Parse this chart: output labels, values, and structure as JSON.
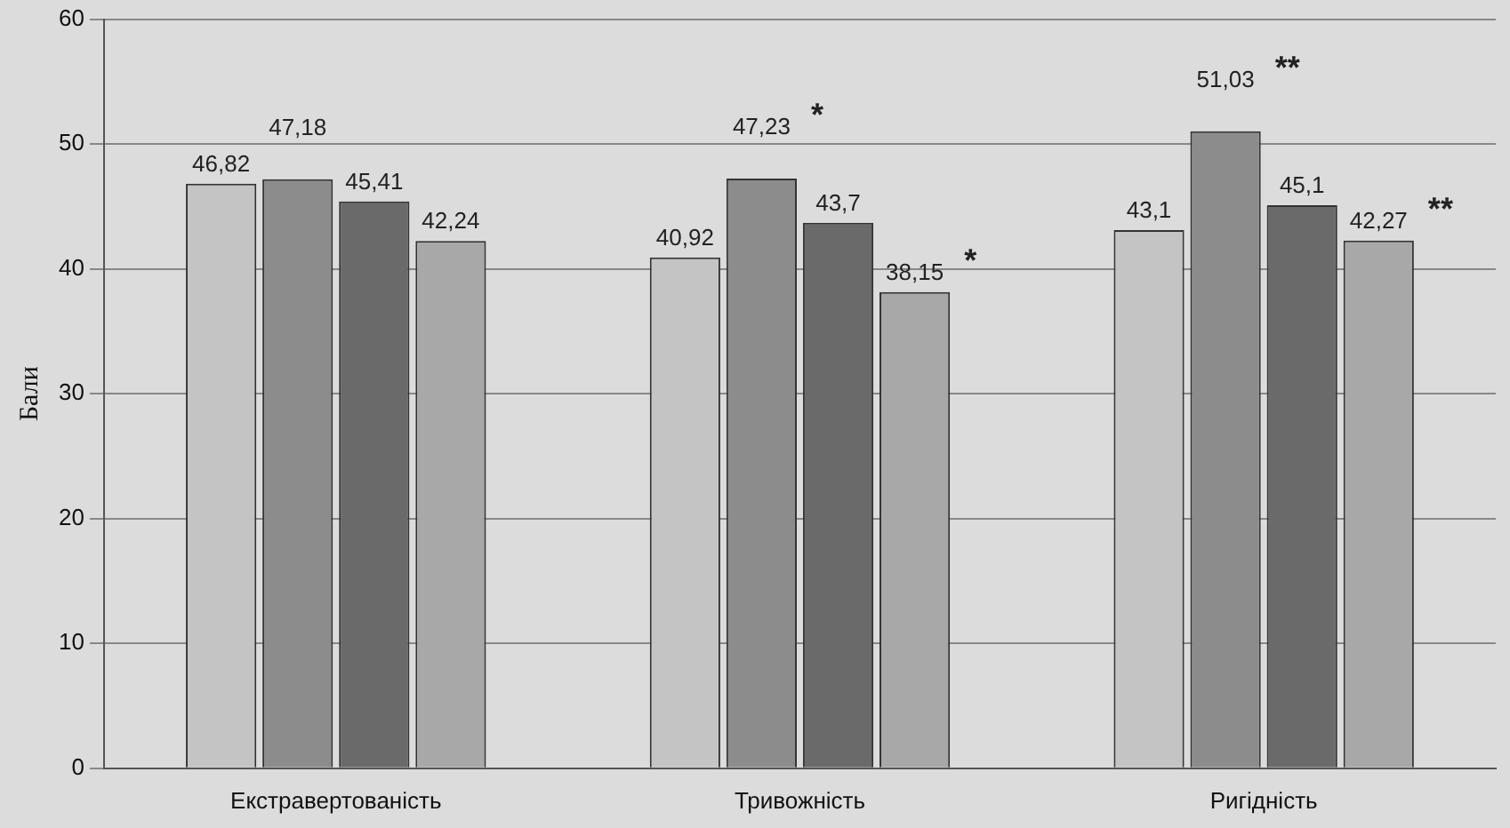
{
  "chart_data": {
    "type": "bar",
    "ylabel": "Бали",
    "categories": [
      "Екстравертованість",
      "Тривожність",
      "Ригідність"
    ],
    "series": [
      {
        "color": "#c4c4c4",
        "values": [
          46.82,
          40.92,
          43.1
        ],
        "value_labels": [
          "46,82",
          "40,92",
          "43,1"
        ]
      },
      {
        "color": "#8c8c8c",
        "values": [
          47.18,
          47.23,
          51.03
        ],
        "value_labels": [
          "47,18",
          "47,23",
          "51,03"
        ]
      },
      {
        "color": "#6a6a6a",
        "values": [
          45.41,
          43.7,
          45.1
        ],
        "value_labels": [
          "45,41",
          "43,7",
          "45,1"
        ]
      },
      {
        "color": "#a8a8a8",
        "values": [
          42.24,
          38.15,
          42.27
        ],
        "value_labels": [
          "42,24",
          "38,15",
          "42,27"
        ]
      }
    ],
    "ylim": [
      0,
      60
    ],
    "yticks": [
      0,
      10,
      20,
      30,
      40,
      50,
      60
    ],
    "grid": "y",
    "legend": false,
    "annotations": [
      "*",
      "*",
      "**",
      "**"
    ]
  }
}
